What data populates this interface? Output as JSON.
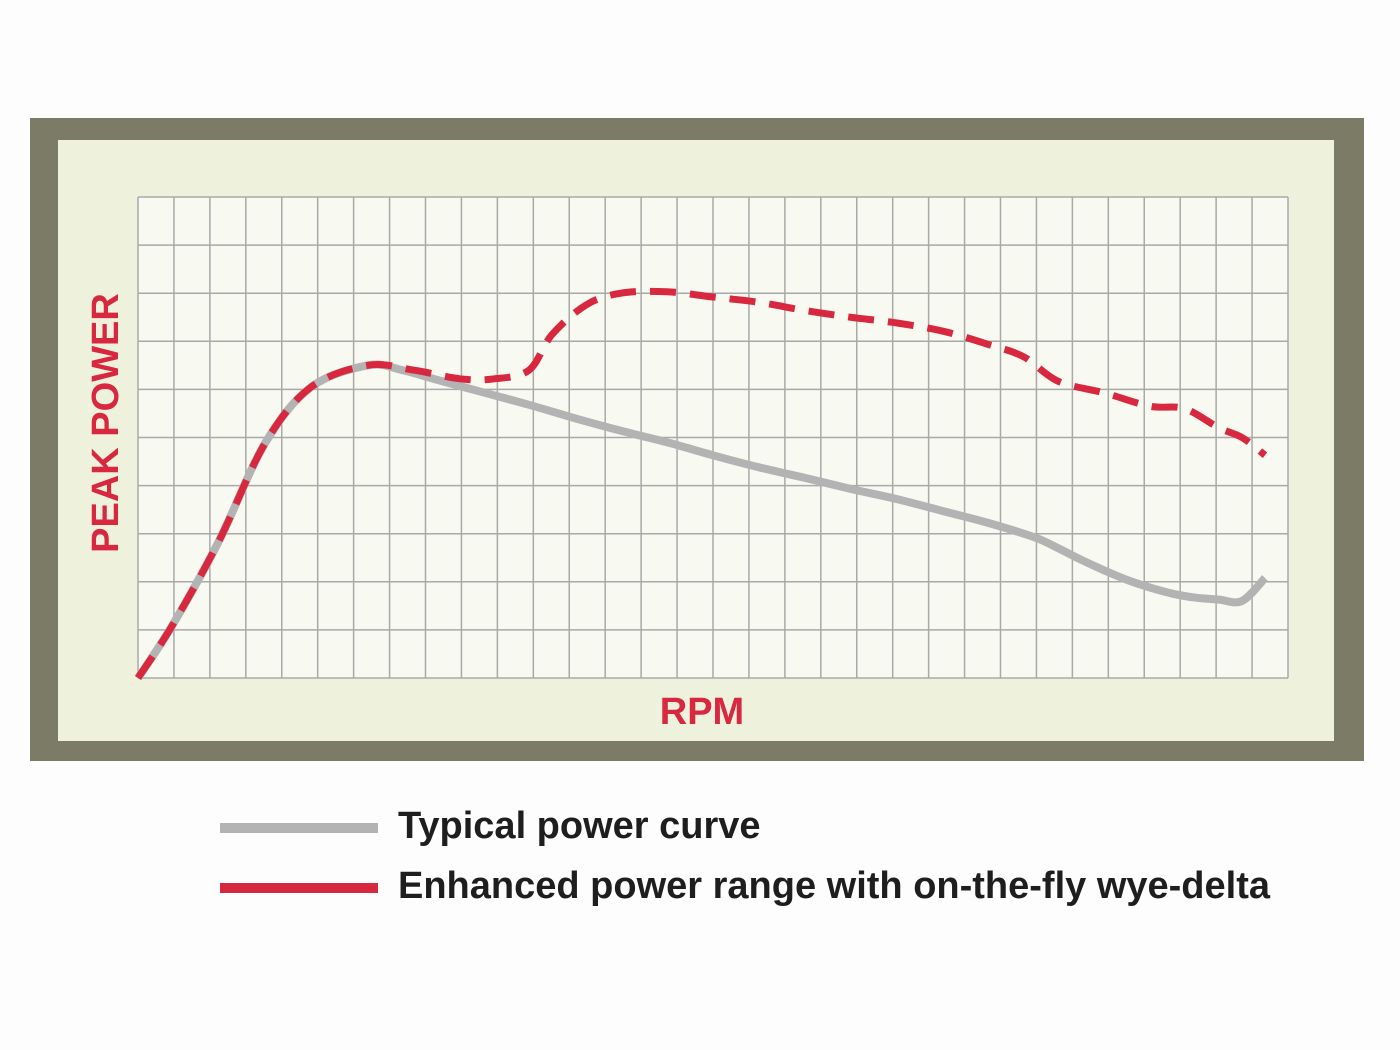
{
  "chart_data": {
    "type": "line",
    "xlabel": "RPM",
    "ylabel": "PEAK POWER",
    "xlim": [
      0,
      1
    ],
    "ylim": [
      0,
      1
    ],
    "grid": true,
    "legend_position": "bottom",
    "series": [
      {
        "name": "Typical power curve",
        "style": "solid",
        "x": [
          0.0,
          0.03,
          0.07,
          0.11,
          0.15,
          0.2,
          0.23,
          0.26,
          0.3,
          0.34,
          0.38,
          0.42,
          0.46,
          0.5,
          0.54,
          0.58,
          0.62,
          0.66,
          0.7,
          0.74,
          0.78,
          0.8,
          0.82,
          0.84,
          0.86,
          0.88,
          0.9,
          0.92,
          0.94,
          0.96,
          0.98
        ],
        "y": [
          0.0,
          0.11,
          0.283,
          0.486,
          0.604,
          0.65,
          0.64,
          0.62,
          0.594,
          0.568,
          0.54,
          0.514,
          0.49,
          0.463,
          0.438,
          0.416,
          0.393,
          0.372,
          0.347,
          0.322,
          0.292,
          0.27,
          0.246,
          0.224,
          0.204,
          0.188,
          0.175,
          0.167,
          0.163,
          0.16,
          0.208
        ]
      },
      {
        "name": "Enhanced power range with on-the-fly wye-delta",
        "style": "dashed",
        "x": [
          0.0,
          0.03,
          0.07,
          0.11,
          0.15,
          0.2,
          0.24,
          0.28,
          0.31,
          0.34,
          0.36,
          0.39,
          0.42,
          0.46,
          0.5,
          0.54,
          0.58,
          0.62,
          0.66,
          0.7,
          0.74,
          0.77,
          0.8,
          0.84,
          0.88,
          0.91,
          0.94,
          0.96,
          0.98
        ],
        "y": [
          0.0,
          0.11,
          0.283,
          0.486,
          0.604,
          0.65,
          0.64,
          0.622,
          0.622,
          0.64,
          0.714,
          0.776,
          0.8,
          0.803,
          0.792,
          0.781,
          0.764,
          0.75,
          0.738,
          0.721,
          0.693,
          0.668,
          0.617,
          0.593,
          0.565,
          0.56,
          0.52,
          0.5,
          0.463
        ]
      }
    ]
  },
  "legend": {
    "typical_label": "Typical power curve",
    "enhanced_label": "Enhanced power range with on-the-fly wye-delta"
  },
  "colors": {
    "frame": "#7b7b66",
    "panel": "#eef2dc",
    "grid": "#a9a9a9",
    "plot_background": "#f8f9f0",
    "typical_line": "#b3b3b3",
    "enhanced_line": "#d7283f",
    "axis_title": "#d7283f",
    "legend_text": "#1e1e1e"
  }
}
